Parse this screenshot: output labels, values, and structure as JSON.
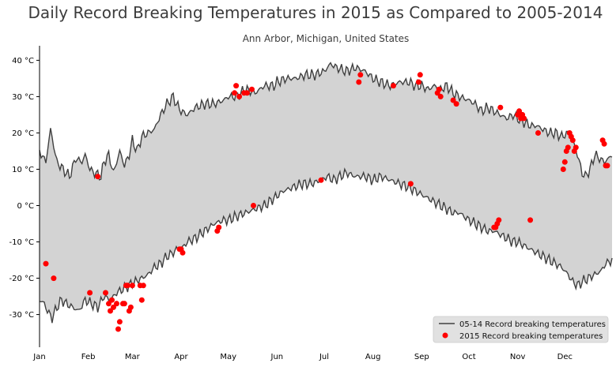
{
  "chart_data": {
    "type": "area",
    "title": "Daily Record Breaking Temperatures in 2015 as Compared to 2005-2014",
    "subtitle": "Ann Arbor, Michigan, United States",
    "xlabel": "",
    "ylabel": "",
    "x_tick_labels": [
      "Jan",
      "Feb",
      "Mar",
      "Apr",
      "May",
      "Jun",
      "Jul",
      "Aug",
      "Sep",
      "Oct",
      "Nov",
      "Dec"
    ],
    "x_tick_days": [
      1,
      32,
      60,
      91,
      121,
      152,
      182,
      213,
      244,
      274,
      305,
      335
    ],
    "xlim": [
      1,
      365
    ],
    "y_ticks": [
      -30,
      -20,
      -10,
      0,
      10,
      20,
      30,
      40
    ],
    "y_tick_labels": [
      "-30 °C",
      "-20 °C",
      "-10 °C",
      "0 °C",
      "10 °C",
      "20 °C",
      "30 °C",
      "40 °C"
    ],
    "ylim": [
      -39,
      44
    ],
    "grid": false,
    "legend_position": "bottom-right",
    "colors": {
      "band": "#d3d3d3",
      "line": "#404040",
      "points": "#ff0000",
      "title": "#3c3c3c"
    },
    "series": [
      {
        "name": "05-14 Record breaking temperatures",
        "kind": "line-band",
        "high_points": [
          [
            1,
            15
          ],
          [
            5,
            12
          ],
          [
            8,
            21
          ],
          [
            12,
            12
          ],
          [
            16,
            10
          ],
          [
            20,
            8
          ],
          [
            24,
            13
          ],
          [
            28,
            12
          ],
          [
            30,
            14
          ],
          [
            33,
            10
          ],
          [
            36,
            9
          ],
          [
            40,
            8
          ],
          [
            42,
            12
          ],
          [
            45,
            14
          ],
          [
            48,
            9
          ],
          [
            52,
            15
          ],
          [
            55,
            11
          ],
          [
            58,
            14
          ],
          [
            60,
            18
          ],
          [
            63,
            15
          ],
          [
            66,
            19
          ],
          [
            70,
            20
          ],
          [
            74,
            21
          ],
          [
            78,
            25
          ],
          [
            82,
            28
          ],
          [
            86,
            30
          ],
          [
            88,
            28
          ],
          [
            91,
            26
          ],
          [
            95,
            25
          ],
          [
            100,
            27
          ],
          [
            106,
            28
          ],
          [
            112,
            28
          ],
          [
            118,
            29
          ],
          [
            121,
            30
          ],
          [
            126,
            30
          ],
          [
            132,
            32
          ],
          [
            138,
            31
          ],
          [
            144,
            33
          ],
          [
            150,
            33
          ],
          [
            152,
            34
          ],
          [
            158,
            35
          ],
          [
            164,
            35
          ],
          [
            170,
            36
          ],
          [
            176,
            36
          ],
          [
            182,
            37
          ],
          [
            186,
            39
          ],
          [
            190,
            38
          ],
          [
            196,
            37
          ],
          [
            202,
            38
          ],
          [
            208,
            37
          ],
          [
            213,
            35
          ],
          [
            218,
            34
          ],
          [
            224,
            33
          ],
          [
            230,
            34
          ],
          [
            236,
            34
          ],
          [
            240,
            33
          ],
          [
            244,
            33
          ],
          [
            248,
            32
          ],
          [
            252,
            33
          ],
          [
            256,
            32
          ],
          [
            260,
            33
          ],
          [
            264,
            31
          ],
          [
            268,
            30
          ],
          [
            274,
            29
          ],
          [
            278,
            28
          ],
          [
            282,
            26
          ],
          [
            286,
            27
          ],
          [
            290,
            26
          ],
          [
            294,
            25
          ],
          [
            298,
            24
          ],
          [
            302,
            25
          ],
          [
            305,
            24
          ],
          [
            309,
            23
          ],
          [
            313,
            22
          ],
          [
            317,
            22
          ],
          [
            321,
            21
          ],
          [
            325,
            20
          ],
          [
            329,
            20
          ],
          [
            333,
            19
          ],
          [
            337,
            20
          ],
          [
            340,
            18
          ],
          [
            343,
            14
          ],
          [
            346,
            9
          ],
          [
            348,
            8
          ],
          [
            351,
            10
          ],
          [
            354,
            14
          ],
          [
            357,
            13
          ],
          [
            360,
            12
          ],
          [
            363,
            13
          ],
          [
            365,
            14
          ]
        ],
        "low_points": [
          [
            1,
            -26
          ],
          [
            4,
            -27
          ],
          [
            6,
            -29
          ],
          [
            9,
            -31
          ],
          [
            12,
            -28
          ],
          [
            15,
            -26
          ],
          [
            18,
            -27
          ],
          [
            22,
            -28
          ],
          [
            26,
            -29
          ],
          [
            30,
            -26
          ],
          [
            34,
            -27
          ],
          [
            38,
            -28
          ],
          [
            42,
            -25
          ],
          [
            46,
            -26
          ],
          [
            50,
            -24
          ],
          [
            54,
            -23
          ],
          [
            58,
            -22
          ],
          [
            62,
            -21
          ],
          [
            66,
            -20
          ],
          [
            70,
            -19
          ],
          [
            74,
            -17
          ],
          [
            78,
            -16
          ],
          [
            82,
            -14
          ],
          [
            86,
            -13
          ],
          [
            88,
            -12
          ],
          [
            91,
            -12
          ],
          [
            95,
            -10
          ],
          [
            100,
            -9
          ],
          [
            106,
            -7
          ],
          [
            112,
            -5
          ],
          [
            118,
            -4
          ],
          [
            121,
            -4
          ],
          [
            126,
            -3
          ],
          [
            132,
            -2
          ],
          [
            138,
            -1
          ],
          [
            144,
            0
          ],
          [
            150,
            2
          ],
          [
            156,
            4
          ],
          [
            162,
            5
          ],
          [
            168,
            6
          ],
          [
            174,
            6
          ],
          [
            180,
            7
          ],
          [
            184,
            8
          ],
          [
            188,
            7
          ],
          [
            192,
            8
          ],
          [
            196,
            9
          ],
          [
            202,
            8
          ],
          [
            208,
            8
          ],
          [
            213,
            7
          ],
          [
            218,
            8
          ],
          [
            224,
            7
          ],
          [
            230,
            6
          ],
          [
            236,
            5
          ],
          [
            240,
            4
          ],
          [
            244,
            3
          ],
          [
            248,
            2
          ],
          [
            252,
            1
          ],
          [
            256,
            0
          ],
          [
            260,
            -1
          ],
          [
            264,
            -2
          ],
          [
            268,
            -2
          ],
          [
            274,
            -4
          ],
          [
            278,
            -5
          ],
          [
            282,
            -6
          ],
          [
            286,
            -7
          ],
          [
            290,
            -7
          ],
          [
            294,
            -8
          ],
          [
            298,
            -9
          ],
          [
            302,
            -10
          ],
          [
            305,
            -10
          ],
          [
            309,
            -11
          ],
          [
            313,
            -12
          ],
          [
            317,
            -13
          ],
          [
            321,
            -14
          ],
          [
            325,
            -15
          ],
          [
            329,
            -16
          ],
          [
            333,
            -17
          ],
          [
            337,
            -19
          ],
          [
            340,
            -21
          ],
          [
            343,
            -22
          ],
          [
            346,
            -21
          ],
          [
            350,
            -20
          ],
          [
            354,
            -19
          ],
          [
            358,
            -18
          ],
          [
            361,
            -16
          ],
          [
            365,
            -15
          ]
        ]
      },
      {
        "name": "2015 Record breaking temperatures",
        "kind": "scatter",
        "points": [
          [
            5,
            -16
          ],
          [
            10,
            -20
          ],
          [
            33,
            -24
          ],
          [
            38,
            8
          ],
          [
            43,
            -24
          ],
          [
            45,
            -27
          ],
          [
            46,
            -29
          ],
          [
            47,
            -26
          ],
          [
            48,
            -28
          ],
          [
            50,
            -27
          ],
          [
            51,
            -34
          ],
          [
            52,
            -32
          ],
          [
            54,
            -27
          ],
          [
            55,
            -27
          ],
          [
            56,
            -22
          ],
          [
            57,
            -22
          ],
          [
            58,
            -29
          ],
          [
            59,
            -28
          ],
          [
            60,
            -22
          ],
          [
            65,
            -22
          ],
          [
            66,
            -26
          ],
          [
            67,
            -22
          ],
          [
            90,
            -12
          ],
          [
            91,
            -12
          ],
          [
            92,
            -13
          ],
          [
            114,
            -7
          ],
          [
            115,
            -6
          ],
          [
            125,
            31
          ],
          [
            126,
            33
          ],
          [
            128,
            30
          ],
          [
            131,
            31
          ],
          [
            133,
            31
          ],
          [
            136,
            32
          ],
          [
            137,
            0
          ],
          [
            180,
            7
          ],
          [
            204,
            34
          ],
          [
            205,
            36
          ],
          [
            226,
            33
          ],
          [
            237,
            6
          ],
          [
            242,
            34
          ],
          [
            243,
            36
          ],
          [
            254,
            31
          ],
          [
            255,
            32
          ],
          [
            256,
            30
          ],
          [
            264,
            29
          ],
          [
            266,
            28
          ],
          [
            290,
            -6
          ],
          [
            291,
            -6
          ],
          [
            292,
            -5
          ],
          [
            293,
            -4
          ],
          [
            294,
            27
          ],
          [
            305,
            25
          ],
          [
            306,
            26
          ],
          [
            307,
            24
          ],
          [
            308,
            25
          ],
          [
            309,
            24
          ],
          [
            313,
            -4
          ],
          [
            318,
            20
          ],
          [
            334,
            10
          ],
          [
            335,
            12
          ],
          [
            336,
            15
          ],
          [
            337,
            16
          ],
          [
            338,
            20
          ],
          [
            339,
            19
          ],
          [
            340,
            18
          ],
          [
            341,
            15
          ],
          [
            342,
            16
          ],
          [
            359,
            18
          ],
          [
            360,
            17
          ],
          [
            361,
            11
          ],
          [
            362,
            11
          ]
        ]
      }
    ]
  }
}
